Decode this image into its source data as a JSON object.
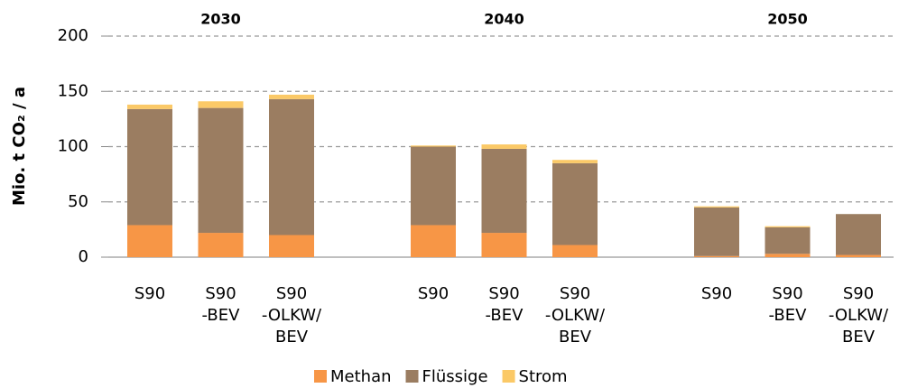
{
  "chart_data": {
    "type": "stacked-bar",
    "y_label": "Mio. t CO₂ / a",
    "groups": [
      "2030",
      "2040",
      "2050"
    ],
    "categories": [
      [
        "S90"
      ],
      [
        "S90",
        "-BEV"
      ],
      [
        "S90",
        "-OLKW/",
        "BEV"
      ],
      [
        "S90"
      ],
      [
        "S90",
        "-BEV"
      ],
      [
        "S90",
        "-OLKW/",
        "BEV"
      ],
      [
        "S90"
      ],
      [
        "S90",
        "-BEV"
      ],
      [
        "S90",
        "-OLKW/",
        "BEV"
      ]
    ],
    "series": [
      {
        "name": "Methan",
        "color": "#f79646",
        "values": [
          29,
          22,
          20,
          29,
          22,
          11,
          1,
          3,
          2
        ]
      },
      {
        "name": "Flüssige",
        "color": "#9b7d61",
        "values": [
          105,
          113,
          123,
          71,
          76,
          74,
          44,
          24,
          37
        ]
      },
      {
        "name": "Strom",
        "color": "#fbc967",
        "values": [
          4,
          6,
          4,
          1,
          4,
          3,
          1,
          1,
          0
        ]
      }
    ],
    "ylim": [
      0,
      200
    ],
    "yticks": [
      0,
      50,
      100,
      150,
      200
    ],
    "grid": true
  }
}
